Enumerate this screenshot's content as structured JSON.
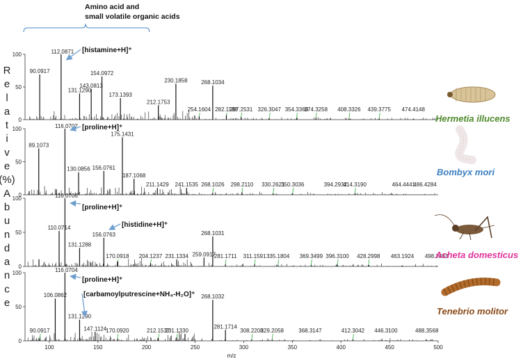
{
  "header": {
    "line1": "Amino acid and",
    "line2": "small volatile organic acids"
  },
  "y_axis_letters": [
    "R",
    "e",
    "l",
    "a",
    "t",
    "i",
    "v",
    "e",
    "(%)",
    "A",
    "b",
    "u",
    "n",
    "d",
    "a",
    "n",
    "c",
    "e"
  ],
  "x_axis_label": "m/z",
  "colors": {
    "spectrum": "#111111",
    "leader": "#2eab3a",
    "arrow": "#6f9fd0",
    "bracket": "#6f9fd0",
    "Hermetia illucens": "#4f8a2c",
    "Bombyx mori": "#3a7fc1",
    "Acheta domesticus": "#e0339a",
    "Tenebrio molitor": "#8a4a18"
  },
  "chart_data": {
    "type": "bar",
    "xlabel": "m/z",
    "ylabel": "Relative Abundance (%)",
    "xlim": [
      75,
      500
    ],
    "xticks": [
      100,
      150,
      200,
      250,
      300,
      350,
      400,
      450,
      500
    ],
    "panels": [
      {
        "species": "Hermetia illucens",
        "ylim": [
          0,
          100
        ],
        "yticks": [
          0,
          50,
          100
        ],
        "labeled_peaks": [
          {
            "mz": 90.0917,
            "label": "90.0917",
            "rel": 69
          },
          {
            "mz": 112.0871,
            "label": "112.0871",
            "rel": 100
          },
          {
            "mz": 131.129,
            "label": "131.1290",
            "rel": 40
          },
          {
            "mz": 143.0813,
            "label": "143.0813",
            "rel": 47
          },
          {
            "mz": 154.0972,
            "label": "154.0972",
            "rel": 66
          },
          {
            "mz": 173.1393,
            "label": "173.1393",
            "rel": 33
          },
          {
            "mz": 212.1753,
            "label": "212.1753",
            "rel": 22
          },
          {
            "mz": 230.1858,
            "label": "230.1858",
            "rel": 55
          },
          {
            "mz": 254.1604,
            "label": "254.1604",
            "rel": 5
          },
          {
            "mz": 268.1034,
            "label": "268.1034",
            "rel": 52
          },
          {
            "mz": 282.1188,
            "label": "282.1188",
            "rel": 7
          },
          {
            "mz": 297.2531,
            "label": "297.2531",
            "rel": 4
          },
          {
            "mz": 326.3047,
            "label": "326.3047",
            "rel": 2
          },
          {
            "mz": 354.336,
            "label": "354.3360",
            "rel": 2
          },
          {
            "mz": 374.3258,
            "label": "374.3258",
            "rel": 3
          },
          {
            "mz": 408.3326,
            "label": "408.3326",
            "rel": 2
          },
          {
            "mz": 439.3775,
            "label": "439.3775",
            "rel": 2
          },
          {
            "mz": 474.4148,
            "label": "474.4148",
            "rel": 1
          }
        ],
        "annotations": [
          {
            "text": "[histamine+H]⁺",
            "target_mz": 112.0871
          }
        ]
      },
      {
        "species": "Bombyx mori",
        "ylim": [
          0,
          100
        ],
        "yticks": [
          0,
          50,
          100
        ],
        "labeled_peaks": [
          {
            "mz": 89.1073,
            "label": "89.1073",
            "rel": 70
          },
          {
            "mz": 116.0702,
            "label": "116.0702",
            "rel": 100
          },
          {
            "mz": 130.0856,
            "label": "130.0856",
            "rel": 34
          },
          {
            "mz": 156.0761,
            "label": "156.0761",
            "rel": 36
          },
          {
            "mz": 175.1431,
            "label": "175.1431",
            "rel": 87
          },
          {
            "mz": 187.1068,
            "label": "187.1068",
            "rel": 24
          },
          {
            "mz": 211.1429,
            "label": "211.1429",
            "rel": 10
          },
          {
            "mz": 241.1535,
            "label": "241.1535",
            "rel": 10
          },
          {
            "mz": 268.1026,
            "label": "268.1026",
            "rel": 3
          },
          {
            "mz": 298.211,
            "label": "298.2110",
            "rel": 4
          },
          {
            "mz": 330.2621,
            "label": "330.2621",
            "rel": 2
          },
          {
            "mz": 350.3036,
            "label": "350.3036",
            "rel": 2
          },
          {
            "mz": 394.2932,
            "label": "394.2932",
            "rel": 1
          },
          {
            "mz": 414.319,
            "label": "414.3190",
            "rel": 2
          },
          {
            "mz": 464.4441,
            "label": "464.4441",
            "rel": 1
          },
          {
            "mz": 486.4284,
            "label": "486.4284",
            "rel": 1
          }
        ],
        "annotations": [
          {
            "text": "[proline+H]⁺",
            "target_mz": 116.0702
          }
        ]
      },
      {
        "species": "Acheta domesticus",
        "ylim": [
          0,
          100
        ],
        "yticks": [
          0,
          50,
          100
        ],
        "labeled_peaks": [
          {
            "mz": 110.0714,
            "label": "110.0714",
            "rel": 52
          },
          {
            "mz": 116.0706,
            "label": "116.0706",
            "rel": 100
          },
          {
            "mz": 131.1288,
            "label": "131.1288",
            "rel": 27
          },
          {
            "mz": 156.0763,
            "label": "156.0763",
            "rel": 42
          },
          {
            "mz": 170.0918,
            "label": "170.0918",
            "rel": 7
          },
          {
            "mz": 204.1237,
            "label": "204.1237",
            "rel": 5
          },
          {
            "mz": 231.1334,
            "label": "231.1334",
            "rel": 10
          },
          {
            "mz": 259.0917,
            "label": "259.0917",
            "rel": 13
          },
          {
            "mz": 268.1031,
            "label": "268.1031",
            "rel": 44
          },
          {
            "mz": 281.1711,
            "label": "281.1711",
            "rel": 3
          },
          {
            "mz": 311.1591,
            "label": "311.1591",
            "rel": 3
          },
          {
            "mz": 335.1804,
            "label": "335.1804",
            "rel": 2
          },
          {
            "mz": 369.3499,
            "label": "369.3499",
            "rel": 2
          },
          {
            "mz": 396.31,
            "label": "396.3100",
            "rel": 2
          },
          {
            "mz": 428.2998,
            "label": "428.2998",
            "rel": 2
          },
          {
            "mz": 463.1924,
            "label": "463.1924",
            "rel": 1
          },
          {
            "mz": 498.2333,
            "label": "498.2333",
            "rel": 1
          }
        ],
        "annotations": [
          {
            "text": "[proline+H]⁺",
            "target_mz": 116.0706
          },
          {
            "text": "[histidine+H]⁺",
            "target_mz": 156.0763
          }
        ]
      },
      {
        "species": "Tenebrio molitor",
        "ylim": [
          0,
          100
        ],
        "yticks": [
          0,
          50,
          100
        ],
        "labeled_peaks": [
          {
            "mz": 90.0917,
            "label": "90.0917",
            "rel": 3
          },
          {
            "mz": 106.0862,
            "label": "106.0862",
            "rel": 62
          },
          {
            "mz": 116.0704,
            "label": "116.0704",
            "rel": 100
          },
          {
            "mz": 131.129,
            "label": "131.1290",
            "rel": 31
          },
          {
            "mz": 147.1124,
            "label": "147.1124",
            "rel": 13
          },
          {
            "mz": 170.092,
            "label": "170.0920",
            "rel": 3
          },
          {
            "mz": 212.1537,
            "label": "212.1537",
            "rel": 4
          },
          {
            "mz": 231.133,
            "label": "231.1330",
            "rel": 5
          },
          {
            "mz": 268.1032,
            "label": "268.1032",
            "rel": 60
          },
          {
            "mz": 281.1714,
            "label": "281.1714",
            "rel": 16
          },
          {
            "mz": 308.2208,
            "label": "308.2208",
            "rel": 2
          },
          {
            "mz": 329.2058,
            "label": "329.2058",
            "rel": 2
          },
          {
            "mz": 368.3147,
            "label": "368.3147",
            "rel": 1
          },
          {
            "mz": 412.3042,
            "label": "412.3042",
            "rel": 2
          },
          {
            "mz": 446.31,
            "label": "446.3100",
            "rel": 1
          },
          {
            "mz": 488.3568,
            "label": "488.3568",
            "rel": 1
          }
        ],
        "annotations": [
          {
            "text": "[proline+H]⁺",
            "target_mz": 116.0704
          },
          {
            "text": "[carbamoylputrescine+NH₄-H₂O]⁺",
            "target_mz": 131.129
          }
        ]
      }
    ]
  }
}
